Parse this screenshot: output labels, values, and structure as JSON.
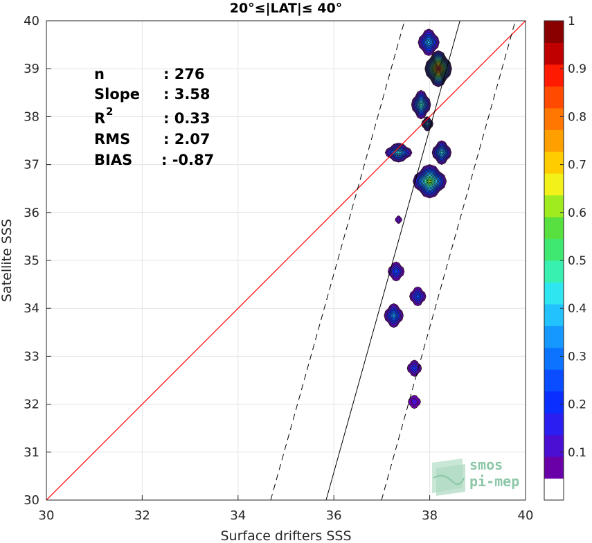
{
  "chart_data": {
    "type": "contour",
    "title": "20°≤|LAT|≤ 40°",
    "xlabel": "Surface drifters SSS",
    "ylabel": "Satellite SSS",
    "xlim": [
      30,
      40
    ],
    "ylim": [
      30,
      40
    ],
    "xticks": [
      "30",
      "32",
      "34",
      "36",
      "38",
      "40"
    ],
    "yticks": [
      "30",
      "31",
      "32",
      "33",
      "34",
      "35",
      "36",
      "37",
      "38",
      "39",
      "40"
    ],
    "grid": true,
    "stats": [
      {
        "key": "n",
        "value": ": 276"
      },
      {
        "key": "Slope",
        "value": ": 3.58"
      },
      {
        "key": "R",
        "sup": "2",
        "value": ": 0.33"
      },
      {
        "key": "RMS",
        "value": ": 2.07"
      },
      {
        "key": "BIAS",
        "value": ": -0.87"
      }
    ],
    "reference_line": {
      "slope": 1,
      "intercept": 0,
      "color": "#ff0000"
    },
    "fit_line": {
      "slope": 3.58,
      "intercept": -98.3,
      "color": "#000000"
    },
    "fit_bounds": {
      "offset": 4.14,
      "style": "dashed"
    },
    "density_blobs": [
      {
        "x": 37.98,
        "y": 39.55,
        "rx": 0.22,
        "ry": 0.28,
        "peak": 0.4
      },
      {
        "x": 38.18,
        "y": 39.0,
        "rx": 0.28,
        "ry": 0.38,
        "peak": 1.0
      },
      {
        "x": 37.82,
        "y": 38.25,
        "rx": 0.2,
        "ry": 0.3,
        "peak": 0.5
      },
      {
        "x": 37.95,
        "y": 37.85,
        "rx": 0.12,
        "ry": 0.15,
        "peak": 0.4
      },
      {
        "x": 37.35,
        "y": 37.25,
        "rx": 0.28,
        "ry": 0.2,
        "peak": 0.45
      },
      {
        "x": 38.25,
        "y": 37.25,
        "rx": 0.2,
        "ry": 0.25,
        "peak": 0.45
      },
      {
        "x": 38.0,
        "y": 36.65,
        "rx": 0.35,
        "ry": 0.35,
        "peak": 0.65
      },
      {
        "x": 37.35,
        "y": 35.85,
        "rx": 0.07,
        "ry": 0.08,
        "peak": 0.12
      },
      {
        "x": 37.3,
        "y": 34.77,
        "rx": 0.17,
        "ry": 0.2,
        "peak": 0.25
      },
      {
        "x": 37.75,
        "y": 34.25,
        "rx": 0.17,
        "ry": 0.2,
        "peak": 0.25
      },
      {
        "x": 37.25,
        "y": 33.85,
        "rx": 0.2,
        "ry": 0.25,
        "peak": 0.38
      },
      {
        "x": 37.68,
        "y": 32.75,
        "rx": 0.15,
        "ry": 0.17,
        "peak": 0.22
      },
      {
        "x": 37.68,
        "y": 32.05,
        "rx": 0.13,
        "ry": 0.14,
        "peak": 0.12
      }
    ],
    "colorbar": {
      "min": 0,
      "max": 1,
      "step": 0.05,
      "ticks": [
        "0.1",
        "0.2",
        "0.3",
        "0.4",
        "0.5",
        "0.6",
        "0.7",
        "0.8",
        "0.9",
        "1"
      ],
      "colors": [
        "#ffffff",
        "#6a00a8",
        "#4b0fd4",
        "#2a1ff0",
        "#0a2eff",
        "#0a4cff",
        "#0b73ff",
        "#1598ff",
        "#22c2ff",
        "#2fe6f0",
        "#38f0b0",
        "#3fe870",
        "#57e040",
        "#a0ea20",
        "#f2f21a",
        "#ffcc00",
        "#ffa000",
        "#ff7700",
        "#ff4a00",
        "#ff1a00",
        "#c00000",
        "#8a0000"
      ]
    }
  },
  "logo": {
    "line1": "smos",
    "line2": "pi-mep"
  }
}
